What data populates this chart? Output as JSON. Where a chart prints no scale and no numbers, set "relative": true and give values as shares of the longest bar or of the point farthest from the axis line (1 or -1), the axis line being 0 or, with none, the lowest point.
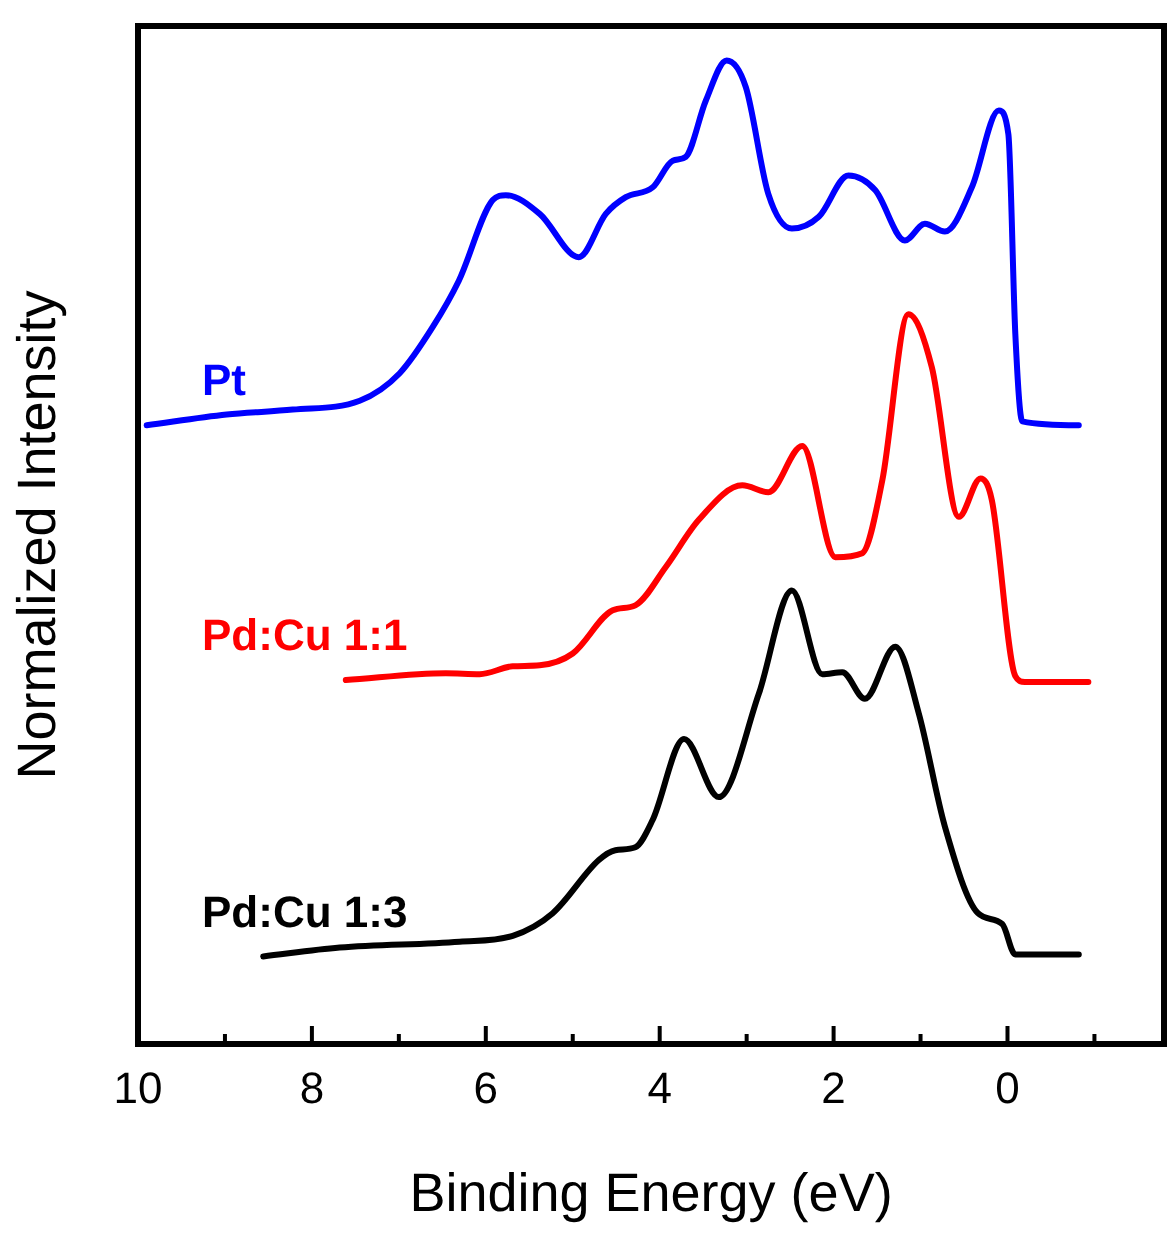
{
  "chart_data": {
    "type": "line",
    "relative": true,
    "xlabel": "Binding Energy (eV)",
    "ylabel": "Normalized Intensity",
    "xlim": [
      10,
      -1.8
    ],
    "xticks": [
      10,
      {
        "value": 9,
        "label": null
      },
      8,
      {
        "value": 7,
        "label": null
      },
      6,
      {
        "value": 5,
        "label": null
      },
      4,
      {
        "value": 3,
        "label": null
      },
      2,
      {
        "value": 1,
        "label": null
      },
      0,
      {
        "value": -1,
        "label": null
      }
    ],
    "tick_labels": "x",
    "grid": false,
    "legend": false,
    "marker": "none",
    "line_style": "solid",
    "series": [
      {
        "name": "Pt",
        "color": "#0000ff",
        "x": [
          9.9,
          8.98,
          8.22,
          7.45,
          6.99,
          6.61,
          6.31,
          5.92,
          5.77,
          5.38,
          4.93,
          4.62,
          4.39,
          4.08,
          3.85,
          3.7,
          3.47,
          3.23,
          3.01,
          2.75,
          2.48,
          2.17,
          1.83,
          1.52,
          1.18,
          0.95,
          0.72,
          0.41,
          0.1,
          -0.01,
          -0.09,
          -0.17,
          -0.82
        ],
        "values": [
          0.629,
          0.64,
          0.645,
          0.654,
          0.682,
          0.729,
          0.776,
          0.858,
          0.863,
          0.844,
          0.8,
          0.844,
          0.861,
          0.871,
          0.898,
          0.902,
          0.959,
          1.0,
          0.973,
          0.864,
          0.829,
          0.841,
          0.883,
          0.868,
          0.817,
          0.834,
          0.826,
          0.871,
          0.949,
          0.925,
          0.722,
          0.633,
          0.629
        ]
      },
      {
        "name": "Pd:Cu 1:1",
        "color": "#ff0000",
        "x": [
          7.61,
          6.46,
          6.07,
          5.69,
          5.38,
          5.0,
          4.54,
          4.28,
          3.93,
          3.55,
          3.05,
          2.75,
          2.36,
          1.98,
          1.67,
          1.44,
          1.14,
          0.87,
          0.56,
          0.31,
          0.18,
          -0.09,
          -0.2,
          -0.93
        ],
        "values": [
          0.37,
          0.377,
          0.376,
          0.384,
          0.385,
          0.397,
          0.441,
          0.446,
          0.485,
          0.533,
          0.568,
          0.561,
          0.608,
          0.495,
          0.499,
          0.573,
          0.742,
          0.688,
          0.536,
          0.575,
          0.553,
          0.374,
          0.368,
          0.368
        ]
      },
      {
        "name": "Pd:Cu 1:3",
        "color": "#000000",
        "x": [
          8.56,
          7.68,
          6.3,
          5.69,
          5.23,
          4.7,
          4.51,
          4.28,
          4.08,
          3.72,
          3.32,
          2.86,
          2.48,
          2.13,
          1.9,
          1.64,
          1.29,
          1.02,
          0.72,
          0.34,
          0.06,
          -0.09,
          -0.82
        ],
        "values": [
          0.089,
          0.098,
          0.104,
          0.11,
          0.133,
          0.187,
          0.197,
          0.2,
          0.228,
          0.31,
          0.251,
          0.356,
          0.461,
          0.376,
          0.378,
          0.351,
          0.404,
          0.336,
          0.221,
          0.133,
          0.122,
          0.091,
          0.091
        ]
      }
    ]
  }
}
